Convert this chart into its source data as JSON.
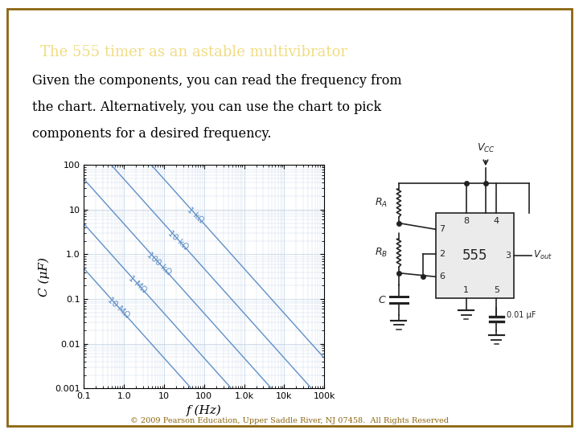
{
  "title": "The 555 timer as an astable multivibrator",
  "title_bg": "#8B6510",
  "title_text_color": "#F0DC82",
  "body_bg": "#FFFFFF",
  "border_color": "#8B6510",
  "body_text_line1": "Given the components, you can read the frequency from",
  "body_text_line2": "the chart. Alternatively, you can use the chart to pick",
  "body_text_line3": "components for a desired frequency.",
  "body_text_color": "#000000",
  "xlabel": "f (Hz)",
  "ylabel": "C (μF)",
  "copyright": "© 2009 Pearson Education, Upper Saddle River, NJ 07458.  All Rights Reserved",
  "copyright_color": "#8B6510",
  "chart_line_color": "#6090C8",
  "chart_grid_color": "#C8D8E8",
  "chart_bg": "#FFFFFF",
  "r_labels": [
    "10 MΩ",
    "1 MΩ",
    "100 kΩ",
    "10 kΩ",
    "1 kΩ"
  ],
  "r_values": [
    10000000.0,
    1000000.0,
    100000.0,
    10000.0,
    1000.0
  ],
  "label_f_positions": [
    0.3,
    1.0,
    3.0,
    10.0,
    30.0
  ]
}
